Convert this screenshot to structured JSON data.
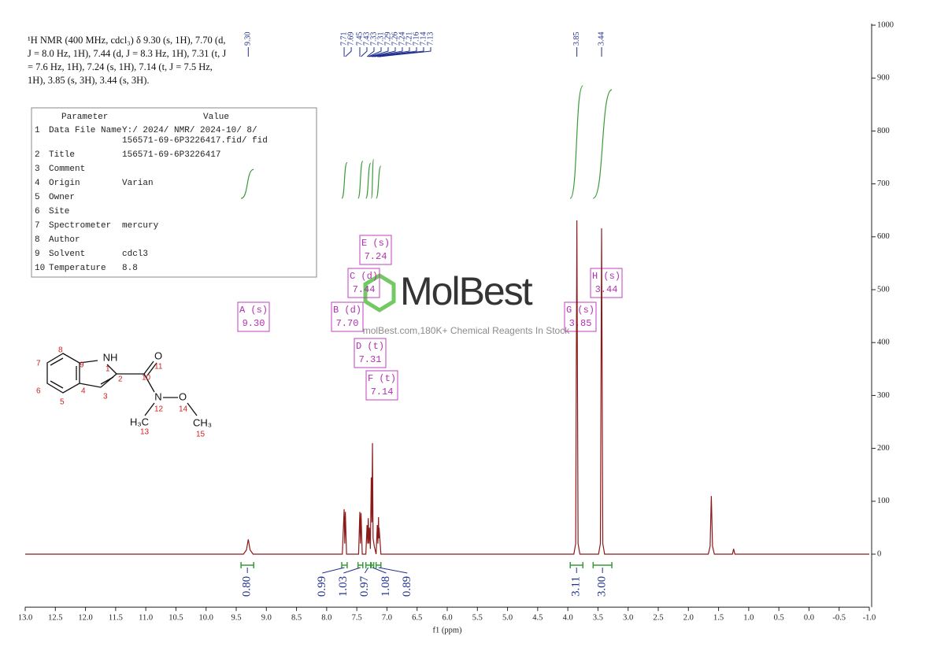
{
  "chart_data": {
    "type": "line",
    "color": "#8b1a1a",
    "x": [
      13.0,
      9.38,
      9.33,
      9.3,
      9.27,
      9.22,
      7.74,
      7.71,
      7.7,
      7.69,
      7.67,
      7.47,
      7.45,
      7.44,
      7.43,
      7.41,
      7.35,
      7.33,
      7.32,
      7.31,
      7.3,
      7.29,
      7.275,
      7.26,
      7.25,
      7.24,
      7.23,
      7.21,
      7.18,
      7.16,
      7.15,
      7.14,
      7.135,
      7.13,
      7.1,
      3.9,
      3.87,
      3.85,
      3.83,
      3.8,
      3.49,
      3.46,
      3.44,
      3.42,
      3.39,
      1.67,
      1.64,
      1.62,
      1.6,
      1.57,
      1.27,
      1.25,
      1.23,
      -1.0
    ],
    "values": [
      0,
      0,
      8,
      28,
      8,
      0,
      0,
      85,
      20,
      80,
      0,
      0,
      80,
      20,
      78,
      0,
      0,
      55,
      20,
      68,
      20,
      50,
      10,
      145,
      60,
      210,
      30,
      15,
      0,
      55,
      20,
      70,
      30,
      50,
      0,
      0,
      20,
      631,
      20,
      0,
      0,
      20,
      616,
      20,
      0,
      0,
      15,
      110,
      15,
      0,
      0,
      10,
      0,
      0
    ],
    "xlabel": "f1 (ppm)",
    "xlim": [
      13.0,
      -1.0
    ],
    "xticks": [
      {
        "value": 13,
        "label": "13.0"
      },
      12.5,
      {
        "value": 12,
        "label": "12.0"
      },
      11.5,
      {
        "value": 11,
        "label": "11.0"
      },
      10.5,
      {
        "value": 10,
        "label": "10.0"
      },
      9.5,
      {
        "value": 9,
        "label": "9.0"
      },
      8.5,
      {
        "value": 8,
        "label": "8.0"
      },
      7.5,
      {
        "value": 7,
        "label": "7.0"
      },
      6.5,
      {
        "value": 6,
        "label": "6.0"
      },
      5.5,
      {
        "value": 5,
        "label": "5.0"
      },
      4.5,
      {
        "value": 4,
        "label": "4.0"
      },
      3.5,
      {
        "value": 3,
        "label": "3.0"
      },
      2.5,
      {
        "value": 2,
        "label": "2.0"
      },
      1.5,
      {
        "value": 1,
        "label": "1.0"
      },
      0.5,
      {
        "value": 0,
        "label": "0.0"
      },
      -0.5,
      {
        "value": -1,
        "label": "-1.0"
      }
    ],
    "ylim": [
      -100,
      1000
    ],
    "yticks": [
      0,
      100,
      200,
      300,
      400,
      500,
      600,
      700,
      800,
      900,
      1000
    ],
    "peak_labels": {
      "color": "#1f2f8f",
      "values": [
        9.3,
        7.71,
        7.69,
        7.45,
        7.43,
        7.33,
        7.31,
        7.29,
        7.26,
        7.24,
        7.21,
        7.16,
        7.14,
        7.13,
        3.85,
        3.44
      ],
      "value_labels": [
        "9.30",
        "7.71",
        "7.69",
        "7.45",
        "7.43",
        "7.33",
        "7.31",
        "7.29",
        "7.26",
        "7.24",
        "7.21",
        "7.16",
        "7.14",
        "7.13",
        "3.85",
        "3.44"
      ]
    },
    "integrals": {
      "color": "#3a9a3a",
      "ranges": [
        [
          9.42,
          9.21
        ],
        [
          7.75,
          7.66
        ],
        [
          7.48,
          7.4
        ],
        [
          7.35,
          7.27
        ],
        [
          7.26,
          7.22
        ],
        [
          7.18,
          7.1
        ],
        [
          3.96,
          3.75
        ],
        [
          3.58,
          3.27
        ]
      ],
      "values": [
        0.8,
        0.99,
        1.03,
        0.97,
        1.08,
        0.89,
        3.11,
        3.0
      ],
      "value_labels": [
        "0.80",
        "0.99",
        "1.03",
        "0.97",
        "1.08",
        "0.89",
        "3.11",
        "3.00"
      ]
    },
    "multiplets": [
      {
        "label": "A (s)",
        "shift": "9.30"
      },
      {
        "label": "B (d)",
        "shift": "7.70"
      },
      {
        "label": "C (d)",
        "shift": "7.44"
      },
      {
        "label": "D (t)",
        "shift": "7.31"
      },
      {
        "label": "E (s)",
        "shift": "7.24"
      },
      {
        "label": "F (t)",
        "shift": "7.14"
      },
      {
        "label": "G (s)",
        "shift": "3.85"
      },
      {
        "label": "H (s)",
        "shift": "3.44"
      }
    ]
  },
  "header": {
    "lines": [
      "¹H NMR (400 MHz, cdcl₃) δ 9.30 (s, 1H), 7.70 (d,",
      "J = 8.0 Hz, 1H), 7.44 (d, J = 8.3 Hz, 1H), 7.31 (t, J",
      "= 7.6 Hz, 1H), 7.24 (s, 1H), 7.14 (t, J = 7.5 Hz,",
      "1H), 3.85 (s, 3H), 3.44 (s, 3H)."
    ]
  },
  "table": {
    "header": [
      "Parameter",
      "Value"
    ],
    "rows": [
      [
        "1",
        "Data File Name",
        "Y:/ 2024/ NMR/ 2024-10/ 8/",
        "156571-69-6P3226417.fid/ fid"
      ],
      [
        "2",
        "Title",
        "156571-69-6P3226417"
      ],
      [
        "3",
        "Comment"
      ],
      [
        "4",
        "Origin",
        "Varian"
      ],
      [
        "5",
        "Owner"
      ],
      [
        "6",
        "Site"
      ],
      [
        "7",
        "Spectrometer",
        "mercury"
      ],
      [
        "8",
        "Author"
      ],
      [
        "9",
        "Solvent",
        "cdcl3"
      ],
      [
        "10",
        "Temperature",
        "8.8"
      ]
    ]
  },
  "structure": {
    "atoms": [
      "NH",
      "O",
      "N",
      "O",
      "H₃C",
      "CH₃"
    ],
    "numbers": [
      "1",
      "2",
      "3",
      "4",
      "5",
      "6",
      "7",
      "8",
      "9",
      "10",
      "11",
      "12",
      "13",
      "14",
      "15"
    ]
  },
  "watermark": {
    "brand": "MolBest",
    "tagline": "molBest.com,180K+ Chemical Reagents In Stock"
  }
}
